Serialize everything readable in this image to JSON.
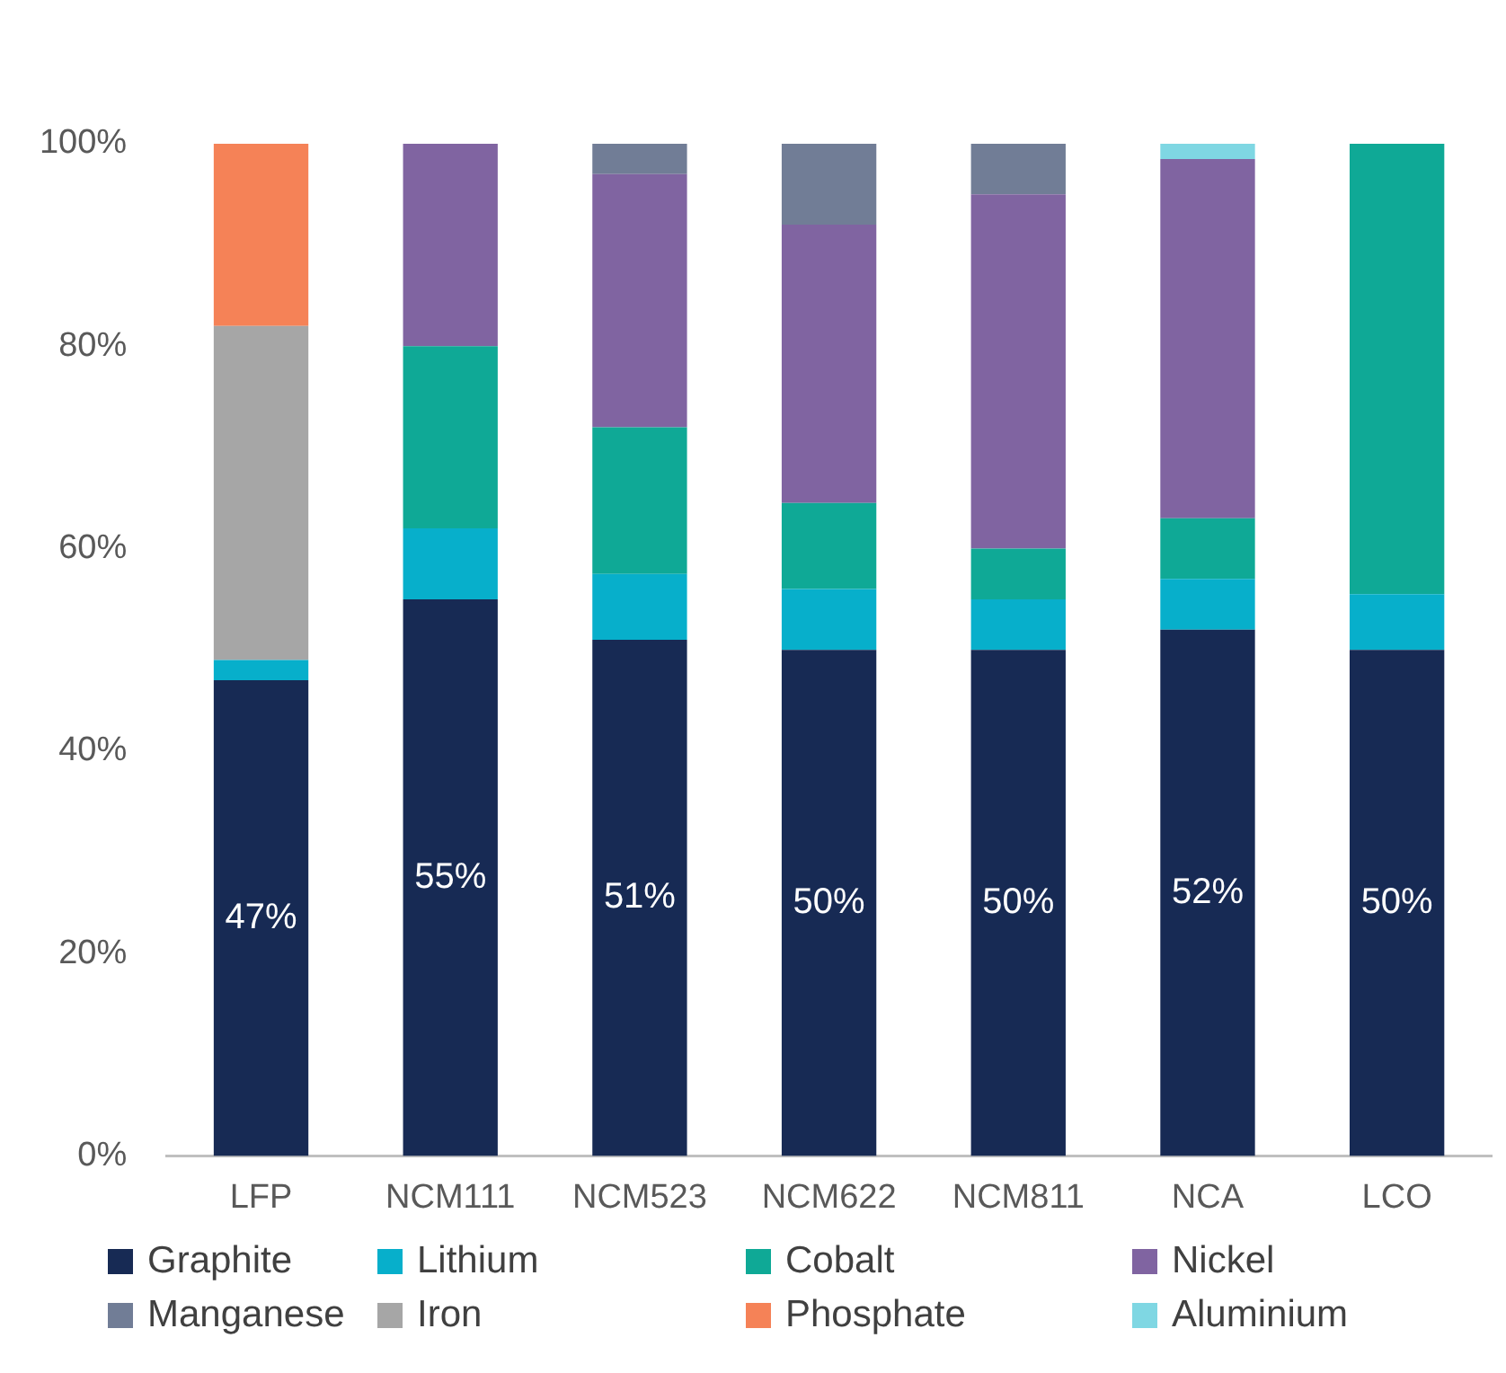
{
  "chart_data": {
    "type": "bar",
    "stacked": true,
    "categories": [
      "LFP",
      "NCM111",
      "NCM523",
      "NCM622",
      "NCM811",
      "NCA",
      "LCO"
    ],
    "series": [
      {
        "name": "Graphite",
        "color": "#172a54",
        "values": [
          47,
          55,
          51,
          50,
          50,
          52,
          50
        ],
        "value_labels": [
          "47%",
          "55%",
          "51%",
          "50%",
          "50%",
          "52%",
          "50%"
        ]
      },
      {
        "name": "Lithium",
        "color": "#07afcb",
        "values": [
          2,
          7,
          6.5,
          6,
          5,
          5,
          5.5
        ]
      },
      {
        "name": "Cobalt",
        "color": "#0fa996",
        "values": [
          null,
          18,
          14.5,
          8.5,
          5,
          6,
          44.5
        ]
      },
      {
        "name": "Nickel",
        "color": "#8064a1",
        "values": [
          null,
          20,
          25,
          27.5,
          35,
          35.5,
          null
        ]
      },
      {
        "name": "Manganese",
        "color": "#717d96",
        "values": [
          null,
          null,
          3,
          8,
          5,
          null,
          null
        ]
      },
      {
        "name": "Iron",
        "color": "#a6a6a6",
        "values": [
          33,
          null,
          null,
          null,
          null,
          null,
          null
        ]
      },
      {
        "name": "Phosphate",
        "color": "#f58257",
        "values": [
          18,
          null,
          null,
          null,
          null,
          null,
          null
        ]
      },
      {
        "name": "Aluminium",
        "color": "#7fd7e3",
        "values": [
          null,
          null,
          null,
          null,
          null,
          1.5,
          null
        ]
      }
    ],
    "ylim": [
      0,
      100
    ],
    "yticks": [
      {
        "value": 0,
        "label": "0%"
      },
      {
        "value": 20,
        "label": "20%"
      },
      {
        "value": 40,
        "label": "40%"
      },
      {
        "value": 60,
        "label": "60%"
      },
      {
        "value": 80,
        "label": "80%"
      },
      {
        "value": 100,
        "label": "100%"
      }
    ],
    "grid": false,
    "legend": "bottom"
  }
}
